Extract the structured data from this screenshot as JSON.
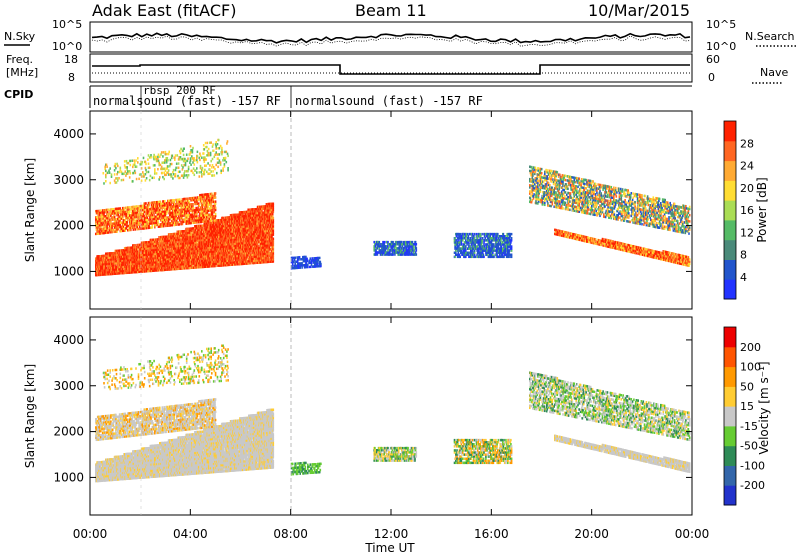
{
  "header": {
    "radar": "Adak East (fitACF)",
    "beam": "Beam 11",
    "date": "10/Mar/2015"
  },
  "top_panels": {
    "nsky_label": "N.Sky",
    "nsearch_label": "N.Search",
    "noise_ticks_left": [
      "10^5",
      "10^0"
    ],
    "noise_ticks_right": [
      "10^5",
      "10^0"
    ],
    "freq_label_1": "Freq.",
    "freq_label_2": "[MHz]",
    "freq_ticks": [
      "18",
      "8"
    ],
    "nave_label": "Nave",
    "nave_ticks": [
      "60",
      "0"
    ],
    "cpid_label": "CPID",
    "cpid_segments": [
      {
        "label": "normalsound (fast) -157 RF",
        "start_h": 0.0,
        "end_h": 8.0
      },
      {
        "label": "rbsp 200 RF",
        "start_h": 2.0,
        "end_h": 2.1
      },
      {
        "label": "normalsound (fast) -157 RF",
        "start_h": 8.0,
        "end_h": 24.0
      }
    ]
  },
  "chart_data": [
    {
      "type": "heatmap",
      "title": "Power",
      "ylabel": "Slant Range [km]",
      "xlabel": "Time UT",
      "xlim_hours": [
        0,
        24
      ],
      "ylim_km": [
        180,
        4500
      ],
      "yticks": [
        "1000",
        "2000",
        "3000",
        "4000"
      ],
      "colorbar_label": "Power [dB]",
      "colorbar_ticks": [
        "4",
        "8",
        "12",
        "16",
        "20",
        "24",
        "28"
      ],
      "colorbar_colors": [
        "#2233ff",
        "#2255cc",
        "#4a8a7a",
        "#55bb66",
        "#aadd55",
        "#ffdd33",
        "#ffaa33",
        "#ff6622",
        "#ff2200"
      ]
    },
    {
      "type": "heatmap",
      "title": "Velocity",
      "ylabel": "Slant Range [km]",
      "xlabel": "Time UT",
      "xlim_hours": [
        0,
        24
      ],
      "ylim_km": [
        180,
        4500
      ],
      "yticks": [
        "1000",
        "2000",
        "3000",
        "4000"
      ],
      "colorbar_label": "Velocity [m s⁻¹]",
      "colorbar_ticks": [
        "200",
        "100",
        "50",
        "15",
        "-15",
        "-50",
        "-100",
        "-200"
      ],
      "colorbar_colors": [
        "#2233cc",
        "#3366aa",
        "#2e8b57",
        "#66cc33",
        "#c8c8c8",
        "#ffcc33",
        "#ff9900",
        "#ff5500",
        "#ee0000"
      ]
    }
  ],
  "xaxis": {
    "ticks": [
      "00:00",
      "04:00",
      "08:00",
      "12:00",
      "16:00",
      "20:00",
      "00:00"
    ],
    "label": "Time UT"
  }
}
